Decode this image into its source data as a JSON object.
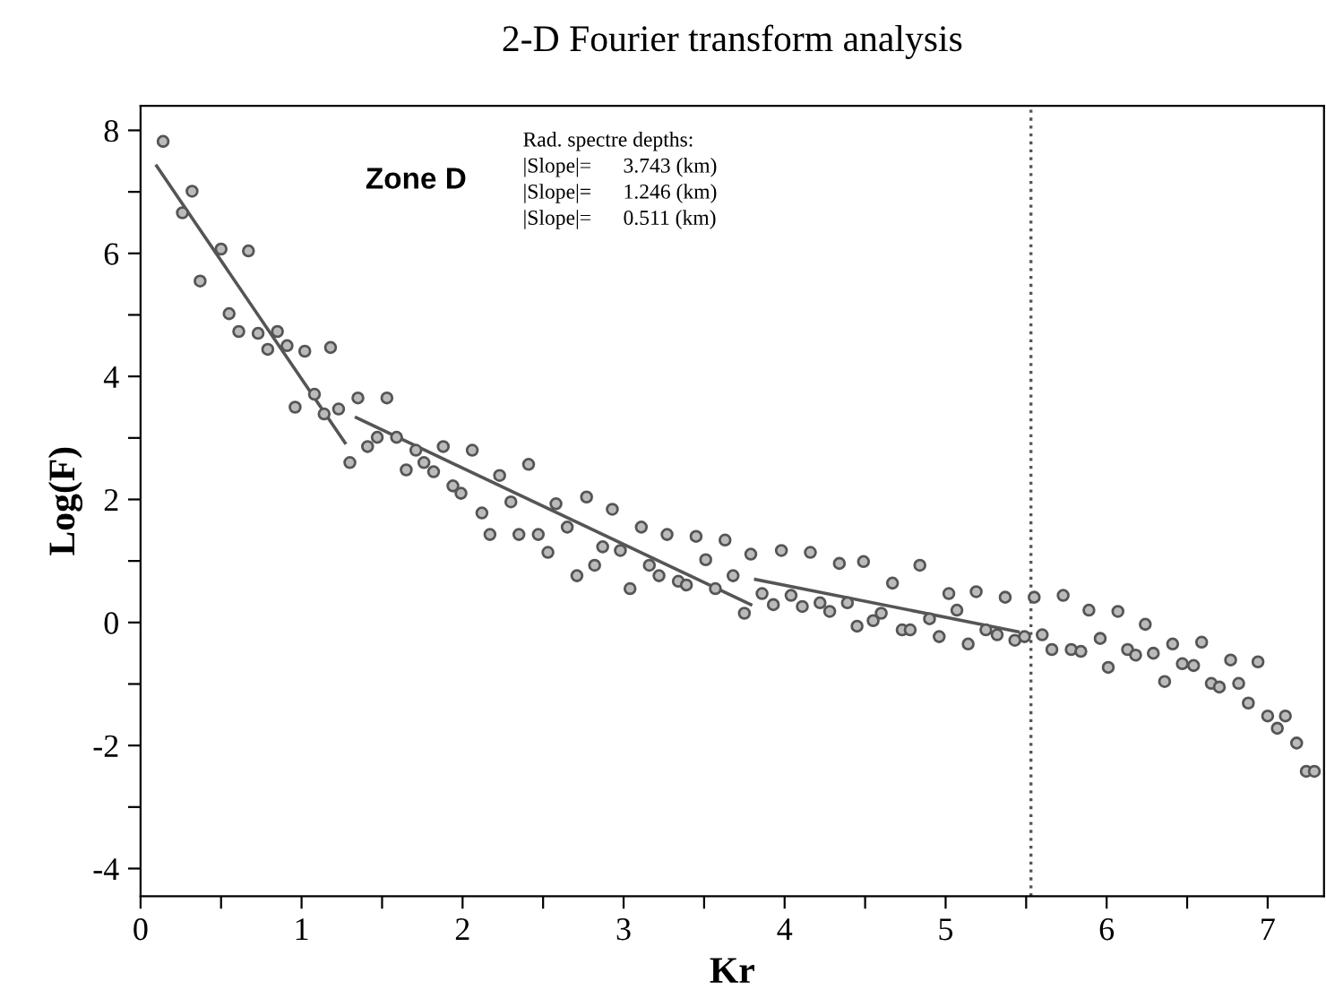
{
  "chart_data": {
    "type": "scatter",
    "title": "2-D Fourier transform analysis",
    "xlabel": "Kr",
    "ylabel": "Log(F)",
    "xlim": [
      0,
      7.35
    ],
    "ylim": [
      -4.45,
      8.4
    ],
    "xticks": [
      0,
      {
        "value": 0.5,
        "label": null
      },
      1,
      {
        "value": 1.5,
        "label": null
      },
      2,
      {
        "value": 2.5,
        "label": null
      },
      3,
      {
        "value": 3.5,
        "label": null
      },
      4,
      {
        "value": 4.5,
        "label": null
      },
      5,
      {
        "value": 5.5,
        "label": null
      },
      6,
      {
        "value": 6.5,
        "label": null
      },
      7
    ],
    "yticks": [
      -4,
      {
        "value": -3,
        "label": null
      },
      -2,
      {
        "value": -1,
        "label": null
      },
      0,
      {
        "value": 1,
        "label": null
      },
      2,
      {
        "value": 3,
        "label": null
      },
      4,
      {
        "value": 5,
        "label": null
      },
      6,
      {
        "value": 7,
        "label": null
      },
      8
    ],
    "grid": false,
    "legend": false,
    "annotations": [
      "Zone D",
      "Rad. spectre depths:",
      "|Slope|=      3.743 (km)",
      "|Slope|=      1.246 (km)",
      "|Slope|=      0.511 (km)"
    ],
    "ref_lines": [
      {
        "axis": "x",
        "value": 5.53,
        "label": null,
        "color": "#555555",
        "line_style": "dotted"
      }
    ],
    "series": [
      {
        "marker": "circle",
        "color": "#555555",
        "x": [
          0.14,
          0.26,
          0.32,
          0.37,
          0.5,
          0.55,
          0.61,
          0.67,
          0.73,
          0.79,
          0.85,
          0.91,
          0.96,
          1.02,
          1.08,
          1.14,
          1.18,
          1.23,
          1.3,
          1.35,
          1.41,
          1.47,
          1.53,
          1.59,
          1.65,
          1.71,
          1.76,
          1.82,
          1.88,
          1.94,
          1.99,
          2.06,
          2.12,
          2.17,
          2.23,
          2.3,
          2.35,
          2.41,
          2.47,
          2.53,
          2.58,
          2.65,
          2.71,
          2.77,
          2.82,
          2.87,
          2.93,
          2.98,
          3.04,
          3.11,
          3.16,
          3.22,
          3.27,
          3.34,
          3.39,
          3.45,
          3.51,
          3.57,
          3.63,
          3.68,
          3.75,
          3.79,
          3.86,
          3.93,
          3.98,
          4.04,
          4.11,
          4.16,
          4.22,
          4.28,
          4.34,
          4.39,
          4.45,
          4.49,
          4.55,
          4.6,
          4.67,
          4.73,
          4.78,
          4.84,
          4.9,
          4.96,
          5.02,
          5.07,
          5.14,
          5.19,
          5.25,
          5.32,
          5.37,
          5.43,
          5.49,
          5.55,
          5.6,
          5.66,
          5.73,
          5.78,
          5.84,
          5.89,
          5.96,
          6.01,
          6.07,
          6.13,
          6.18,
          6.24,
          6.29,
          6.36,
          6.41,
          6.47,
          6.54,
          6.59,
          6.65,
          6.7,
          6.77,
          6.82,
          6.88,
          6.94,
          7.0,
          7.06,
          7.11,
          7.18,
          7.24,
          7.29
        ],
        "values": [
          7.82,
          6.66,
          7.01,
          5.55,
          6.07,
          5.02,
          4.73,
          6.04,
          4.7,
          4.44,
          4.73,
          4.5,
          3.5,
          4.41,
          3.71,
          3.39,
          4.47,
          3.47,
          2.6,
          3.65,
          2.86,
          3.01,
          3.65,
          3.01,
          2.48,
          2.8,
          2.6,
          2.45,
          2.86,
          2.22,
          2.1,
          2.8,
          1.78,
          1.43,
          2.39,
          1.96,
          1.43,
          2.57,
          1.43,
          1.14,
          1.93,
          1.55,
          0.76,
          2.04,
          0.93,
          1.23,
          1.84,
          1.17,
          0.55,
          1.55,
          0.93,
          0.76,
          1.43,
          0.67,
          0.61,
          1.4,
          1.02,
          0.55,
          1.34,
          0.76,
          0.15,
          1.11,
          0.47,
          0.29,
          1.17,
          0.44,
          0.26,
          1.14,
          0.32,
          0.18,
          0.96,
          0.32,
          -0.06,
          0.99,
          0.03,
          0.15,
          0.64,
          -0.12,
          -0.12,
          0.93,
          0.06,
          -0.23,
          0.47,
          0.2,
          -0.35,
          0.5,
          -0.12,
          -0.2,
          0.41,
          -0.29,
          -0.23,
          0.41,
          -0.2,
          -0.44,
          0.44,
          -0.44,
          -0.47,
          0.2,
          -0.26,
          -0.73,
          0.18,
          -0.44,
          -0.53,
          -0.03,
          -0.5,
          -0.96,
          -0.35,
          -0.67,
          -0.7,
          -0.32,
          -0.99,
          -1.05,
          -0.61,
          -0.99,
          -1.31,
          -0.64,
          -1.52,
          -1.72,
          -1.52,
          -1.96,
          -2.42,
          -2.42
        ]
      },
      {
        "type": "line",
        "marker": "none",
        "color": "#555555",
        "x": [
          0.1,
          1.27
        ],
        "values": [
          7.42,
          2.92
        ]
      },
      {
        "type": "line",
        "marker": "none",
        "color": "#555555",
        "x": [
          1.34,
          3.79
        ],
        "values": [
          3.33,
          0.29
        ]
      },
      {
        "type": "line",
        "marker": "none",
        "color": "#555555",
        "x": [
          3.82,
          5.45
        ],
        "values": [
          0.7,
          -0.15
        ]
      }
    ]
  }
}
